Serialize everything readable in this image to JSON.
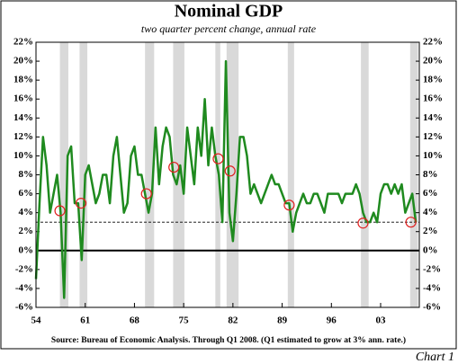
{
  "chart_data": {
    "type": "line",
    "title": "Nominal GDP",
    "subtitle": "two quarter percent change, annual rate",
    "source": "Source:  Bureau of Economic Analysis. Through Q1 2008. (Q1 estimated to grow at 3% ann. rate.)",
    "caption": "Chart 1",
    "x": [
      1954,
      1954.5,
      1955,
      1955.5,
      1956,
      1956.5,
      1957,
      1957.5,
      1958,
      1958.5,
      1959,
      1959.5,
      1960,
      1960.5,
      1961,
      1961.5,
      1962,
      1962.5,
      1963,
      1963.5,
      1964,
      1964.5,
      1965,
      1965.5,
      1966,
      1966.5,
      1967,
      1967.5,
      1968,
      1968.5,
      1969,
      1969.5,
      1970,
      1970.5,
      1971,
      1971.5,
      1972,
      1972.5,
      1973,
      1973.5,
      1974,
      1974.5,
      1975,
      1975.5,
      1976,
      1976.5,
      1977,
      1977.5,
      1978,
      1978.5,
      1979,
      1979.5,
      1980,
      1980.5,
      1981,
      1981.5,
      1982,
      1982.5,
      1983,
      1983.5,
      1984,
      1984.5,
      1985,
      1985.5,
      1986,
      1986.5,
      1987,
      1987.5,
      1988,
      1988.5,
      1989,
      1989.5,
      1990,
      1990.5,
      1991,
      1991.5,
      1992,
      1992.5,
      1993,
      1993.5,
      1994,
      1994.5,
      1995,
      1995.5,
      1996,
      1996.5,
      1997,
      1997.5,
      1998,
      1998.5,
      1999,
      1999.5,
      2000,
      2000.5,
      2001,
      2001.5,
      2002,
      2002.5,
      2003,
      2003.5,
      2004,
      2004.5,
      2005,
      2005.5,
      2006,
      2006.5,
      2007,
      2007.5,
      2008
    ],
    "series": [
      {
        "color": "#1f8a1f",
        "values": [
          -3,
          5,
          12,
          9,
          4,
          6,
          8,
          4,
          -5,
          10,
          11,
          5,
          5,
          -1,
          8,
          9,
          7,
          5,
          6,
          8,
          8,
          5,
          10,
          12,
          8,
          4,
          5,
          10,
          11,
          8,
          8,
          6,
          4,
          6,
          13,
          7,
          11,
          13,
          12,
          8,
          7,
          9,
          6,
          13,
          10,
          7,
          13,
          10,
          16,
          9,
          13,
          10,
          8,
          3,
          20,
          4,
          1,
          6,
          12,
          12,
          10,
          6,
          7,
          6,
          5,
          6,
          7,
          8,
          7,
          7,
          6,
          5,
          5,
          2,
          4,
          5,
          6,
          5,
          5,
          6,
          6,
          5,
          4,
          6,
          6,
          6,
          6,
          5,
          6,
          6,
          6,
          7,
          6,
          4,
          3,
          3,
          4,
          3,
          6,
          7,
          7,
          6,
          7,
          6,
          7,
          4,
          5,
          6,
          3
        ]
      }
    ],
    "shading": [
      [
        1957.4,
        1958.6
      ],
      [
        1960.2,
        1961.3
      ],
      [
        1969.5,
        1970.8
      ],
      [
        1973.5,
        1975.1
      ],
      [
        1979.5,
        1980.2
      ],
      [
        1981.1,
        1982.8
      ],
      [
        1989.8,
        1990.7
      ],
      [
        2000.2,
        2001.3
      ],
      [
        2007.2,
        2008.3
      ]
    ],
    "circles": {
      "x": [
        1957.4,
        1960.4,
        1969.7,
        1973.6,
        1979.9,
        1981.6,
        1990.0,
        2000.5,
        2007.3
      ],
      "values": [
        4.2,
        5,
        6,
        8.8,
        9.7,
        8.4,
        4.8,
        2.9,
        3
      ]
    },
    "reference_line": 3,
    "xlim": [
      1954,
      2008.5
    ],
    "xticks": [
      {
        "value": 1954,
        "label": "54"
      },
      {
        "value": 1961,
        "label": "61"
      },
      {
        "value": 1968,
        "label": "68"
      },
      {
        "value": 1975,
        "label": "75"
      },
      {
        "value": 1982,
        "label": "82"
      },
      {
        "value": 1989,
        "label": "89"
      },
      {
        "value": 1996,
        "label": "96"
      },
      {
        "value": 2003,
        "label": "03"
      }
    ],
    "ylim": [
      -6,
      22
    ],
    "yticks": [
      {
        "value": -6,
        "label": "-6%"
      },
      {
        "value": -4,
        "label": "-4%"
      },
      {
        "value": -2,
        "label": "-2%"
      },
      {
        "value": 0,
        "label": "0%"
      },
      {
        "value": 2,
        "label": "2%"
      },
      {
        "value": 4,
        "label": "4%"
      },
      {
        "value": 6,
        "label": "6%"
      },
      {
        "value": 8,
        "label": "8%"
      },
      {
        "value": 10,
        "label": "10%"
      },
      {
        "value": 12,
        "label": "12%"
      },
      {
        "value": 14,
        "label": "14%"
      },
      {
        "value": 16,
        "label": "16%"
      },
      {
        "value": 18,
        "label": "18%"
      },
      {
        "value": 20,
        "label": "20%"
      },
      {
        "value": 22,
        "label": "22%"
      }
    ]
  }
}
